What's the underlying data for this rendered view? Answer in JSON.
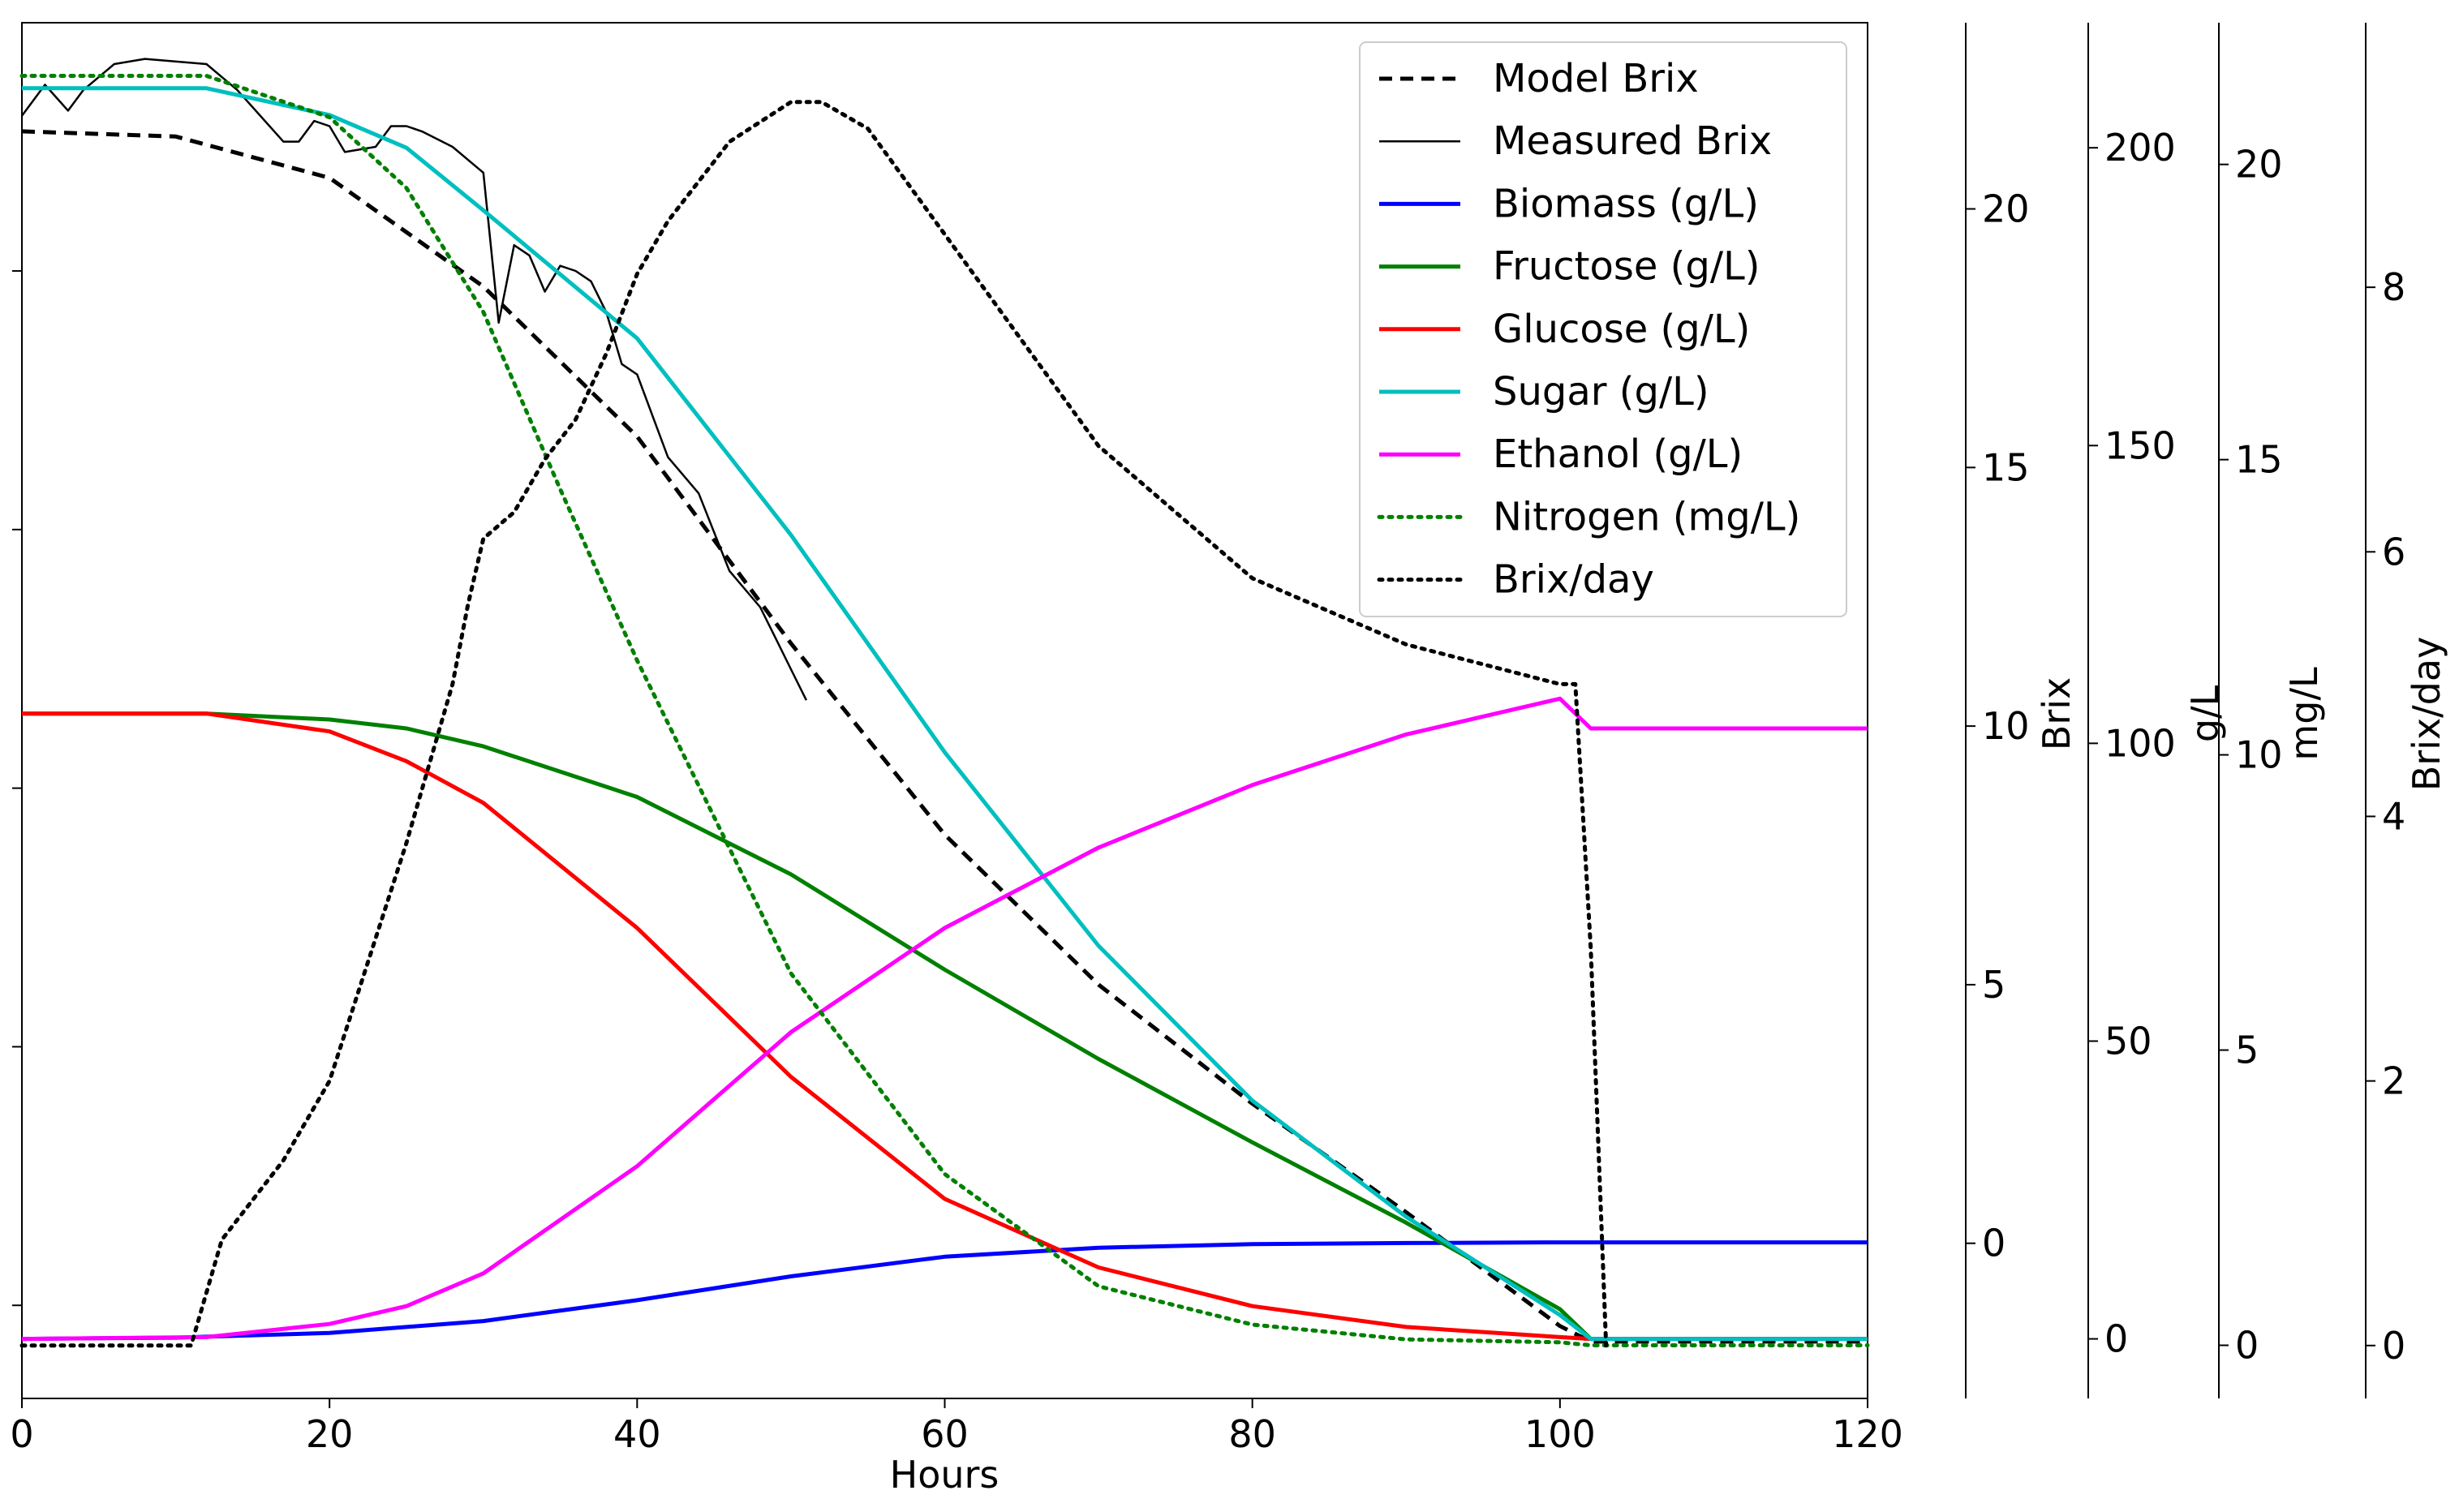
{
  "chart_data": {
    "type": "line",
    "title": "",
    "xlabel": "Hours",
    "xlim": [
      0,
      120
    ],
    "x_ticks": [
      0,
      20,
      40,
      60,
      80,
      100,
      120
    ],
    "x_tick_labels": [
      "0",
      "20",
      "40",
      "60",
      "80",
      "100",
      "120"
    ],
    "left_axis": {
      "ylim": [
        -1.8,
        24.8
      ],
      "ticks": [
        0,
        5,
        10,
        15,
        20
      ],
      "labels_visible": false
    },
    "right_axes": [
      {
        "label": "Brix",
        "ylim": [
          -3.0,
          23.6
        ],
        "ticks": [
          0,
          5,
          10,
          15,
          20
        ],
        "tick_labels": [
          "0",
          "5",
          "10",
          "15",
          "20"
        ]
      },
      {
        "label": "g/L",
        "ylim": [
          -10,
          221
        ],
        "ticks": [
          0,
          50,
          100,
          150,
          200
        ],
        "tick_labels": [
          "0",
          "50",
          "100",
          "150",
          "200"
        ]
      },
      {
        "label": "mg/L",
        "ylim": [
          -0.9,
          22.4
        ],
        "ticks": [
          0,
          5,
          10,
          15,
          20
        ],
        "tick_labels": [
          "0",
          "5",
          "10",
          "15",
          "20"
        ]
      },
      {
        "label": "Brix/day",
        "ylim": [
          -0.4,
          10.0
        ],
        "ticks": [
          0,
          2,
          4,
          6,
          8
        ],
        "tick_labels": [
          "0",
          "2",
          "4",
          "6",
          "8"
        ]
      }
    ],
    "legend": {
      "position": "top-right",
      "entries": [
        "Model Brix",
        "Measured Brix",
        "Biomass (g/L)",
        "Fructose (g/L)",
        "Glucose (g/L)",
        "Sugar (g/L)",
        "Ethanol (g/L)",
        "Nitrogen  (mg/L)",
        "Brix/day"
      ]
    },
    "series": [
      {
        "name": "Model Brix",
        "axis": "Brix",
        "color": "#000000",
        "style": "dashed",
        "x": [
          0,
          10,
          20,
          30,
          40,
          50,
          60,
          70,
          80,
          90,
          100,
          102,
          120
        ],
        "y": [
          21.5,
          21.4,
          20.6,
          18.5,
          15.6,
          11.6,
          7.9,
          5.0,
          2.7,
          0.6,
          -1.6,
          -1.9,
          -1.9
        ]
      },
      {
        "name": "Measured Brix",
        "axis": "Brix",
        "color": "#000000",
        "style": "solid",
        "x": [
          0,
          1.5,
          3,
          4,
          6,
          8,
          12,
          14,
          17,
          18,
          19,
          20,
          21,
          23,
          24,
          25,
          26,
          28,
          30,
          31,
          32,
          33,
          34,
          35,
          36,
          37,
          38,
          39,
          40,
          42,
          44,
          46,
          48,
          49,
          50,
          51
        ],
        "y": [
          21.8,
          22.4,
          21.9,
          22.3,
          22.8,
          22.9,
          22.8,
          22.3,
          21.3,
          21.3,
          21.7,
          21.6,
          21.1,
          21.2,
          21.6,
          21.6,
          21.5,
          21.2,
          20.7,
          17.8,
          19.3,
          19.1,
          18.4,
          18.9,
          18.8,
          18.6,
          18.0,
          17.0,
          16.8,
          15.2,
          14.5,
          13.0,
          12.3,
          11.7,
          11.1,
          10.5
        ]
      },
      {
        "name": "Biomass (g/L)",
        "axis": "g/L",
        "color": "#0000ff",
        "style": "solid",
        "x": [
          0,
          10,
          20,
          30,
          40,
          50,
          60,
          70,
          80,
          90,
          100,
          110,
          120
        ],
        "y": [
          0,
          0.2,
          1,
          3,
          6.5,
          10.5,
          13.8,
          15.3,
          15.9,
          16.1,
          16.2,
          16.2,
          16.2
        ]
      },
      {
        "name": "Fructose (g/L)",
        "axis": "g/L",
        "color": "#008000",
        "style": "solid",
        "x": [
          0,
          12,
          20,
          25,
          30,
          40,
          50,
          60,
          70,
          80,
          90,
          100,
          102,
          120
        ],
        "y": [
          105,
          105,
          104,
          102.5,
          99.5,
          91,
          78,
          62,
          47,
          33,
          19.5,
          5,
          0,
          0
        ]
      },
      {
        "name": "Glucose (g/L)",
        "axis": "g/L",
        "color": "#ff0000",
        "style": "solid",
        "x": [
          0,
          12,
          20,
          25,
          30,
          40,
          50,
          60,
          70,
          80,
          90,
          100,
          102,
          120
        ],
        "y": [
          105,
          105,
          102,
          97,
          90,
          69,
          44,
          23.5,
          12,
          5.5,
          2,
          0.3,
          0,
          0
        ]
      },
      {
        "name": "Sugar (g/L)",
        "axis": "g/L",
        "color": "#00bfbf",
        "style": "solid",
        "x": [
          0,
          12,
          20,
          25,
          30,
          40,
          50,
          60,
          70,
          80,
          90,
          100,
          102,
          120
        ],
        "y": [
          210,
          210,
          205.5,
          200,
          189.5,
          168,
          135,
          98.5,
          66,
          40,
          20.5,
          4,
          0,
          0
        ]
      },
      {
        "name": "Ethanol (g/L)",
        "axis": "g/L",
        "color": "#ff00ff",
        "style": "solid",
        "x": [
          0,
          12,
          20,
          25,
          30,
          40,
          50,
          60,
          70,
          80,
          90,
          100,
          102,
          120
        ],
        "y": [
          0,
          0.3,
          2.5,
          5.5,
          11,
          29,
          51.5,
          69,
          82.5,
          93,
          101.5,
          107.5,
          102.5,
          102.5
        ]
      },
      {
        "name": "Nitrogen  (mg/L)",
        "axis": "mg/L",
        "color": "#008000",
        "style": "dotted",
        "x": [
          0,
          12,
          20,
          25,
          30,
          35,
          40,
          50,
          60,
          70,
          80,
          90,
          100,
          102,
          120
        ],
        "y": [
          21.5,
          21.5,
          20.8,
          19.6,
          17.5,
          14.5,
          11.6,
          6.3,
          2.9,
          1.0,
          0.35,
          0.1,
          0.05,
          0,
          0
        ]
      },
      {
        "name": "Brix/day",
        "axis": "Brix/day",
        "color": "#000000",
        "style": "dotted",
        "x": [
          0,
          11,
          12,
          13,
          15,
          17,
          20,
          25,
          28,
          29,
          30,
          32,
          34,
          36,
          38,
          40,
          42,
          46,
          50,
          52,
          55,
          60,
          65,
          70,
          80,
          90,
          100,
          101,
          102,
          103
        ],
        "y": [
          0,
          0,
          0.4,
          0.8,
          1.1,
          1.4,
          2.0,
          3.8,
          5.0,
          5.6,
          6.1,
          6.3,
          6.7,
          7.0,
          7.5,
          8.1,
          8.5,
          9.1,
          9.4,
          9.4,
          9.2,
          8.4,
          7.6,
          6.8,
          5.8,
          5.3,
          5.0,
          5.0,
          3.0,
          0
        ]
      }
    ]
  }
}
